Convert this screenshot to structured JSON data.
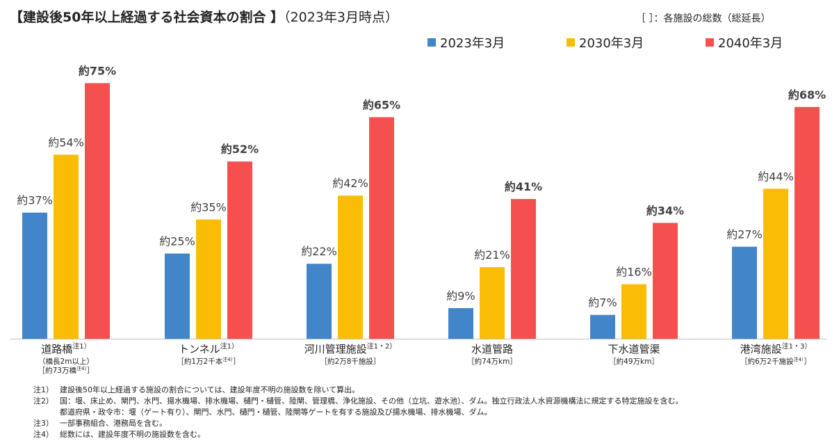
{
  "title": {
    "main": "【建設後50年以上経過する社会資本の割合 】",
    "sub": "（2023年3月時点）"
  },
  "legend_note": "［ ］：各施設の総数（総延長）",
  "chart_data": {
    "type": "bar",
    "title": "【建設後50年以上経過する社会資本の割合 】（2023年3月時点）",
    "categories": [
      {
        "name": "道路橋",
        "sup": "注1）",
        "sub1": "（橋長2m以上）",
        "sub2": "［約73万橋",
        "sub2_sup": "注4）",
        "sub2_end": "］"
      },
      {
        "name": "トンネル",
        "sup": "注1）",
        "sub1": "［約1万2千本",
        "sub1_sup": "注4）",
        "sub1_end": "］"
      },
      {
        "name": "河川管理施設",
        "sup": "注1・2）",
        "sub1": "［約2万8千施設］"
      },
      {
        "name": "水道管路",
        "sup": "",
        "sub1": "［約74万km］"
      },
      {
        "name": "下水道管渠",
        "sup": "",
        "sub1": "［約49万km］"
      },
      {
        "name": "港湾施設",
        "sup": "注1・3）",
        "sub1": "［約6万2千施設",
        "sub1_sup": "注4）",
        "sub1_end": "］"
      }
    ],
    "series": [
      {
        "name": "2023年3月",
        "color": "#4285c9",
        "values": [
          37,
          25,
          22,
          9,
          7,
          27
        ],
        "labels": [
          "約37%",
          "約25%",
          "約22%",
          "約9%",
          "約7%",
          "約27%"
        ],
        "bold": false
      },
      {
        "name": "2030年3月",
        "color": "#fbbc05",
        "values": [
          54,
          35,
          42,
          21,
          16,
          44
        ],
        "labels": [
          "約54%",
          "約35%",
          "約42%",
          "約21%",
          "約16%",
          "約44%"
        ],
        "bold": false
      },
      {
        "name": "2040年3月",
        "color": "#f4504f",
        "values": [
          75,
          52,
          65,
          41,
          34,
          68
        ],
        "labels": [
          "約75%",
          "約52%",
          "約65%",
          "約41%",
          "約34%",
          "約68%"
        ],
        "bold": true
      }
    ],
    "ylim": [
      0,
      80
    ],
    "grid": false,
    "legend": "top-right"
  },
  "notes": [
    {
      "label": "注1）",
      "text": "建設後50年以上経過する施設の割合については、建設年度不明の施設数を除いて算出。"
    },
    {
      "label": "注2）",
      "text": "国：堰、床止め、閘門、水門、揚水機場、排水機場、樋門・樋管、陸閘、管理橋、浄化施設、その他（立坑、遊水池）、ダム。独立行政法人水資源機構法に規定する特定施設を含む。"
    },
    {
      "label": "",
      "text": "都道府県・政令市：堰（ゲート有り）、閘門、水門、樋門・樋管、陸閘等ゲートを有する施設及び揚水機場、排水機場、ダム。"
    },
    {
      "label": "注3）",
      "text": "一部事務組合、港務局を含む。"
    },
    {
      "label": "注4）",
      "text": "総数には、建設年度不明の施設数を含む。"
    }
  ]
}
